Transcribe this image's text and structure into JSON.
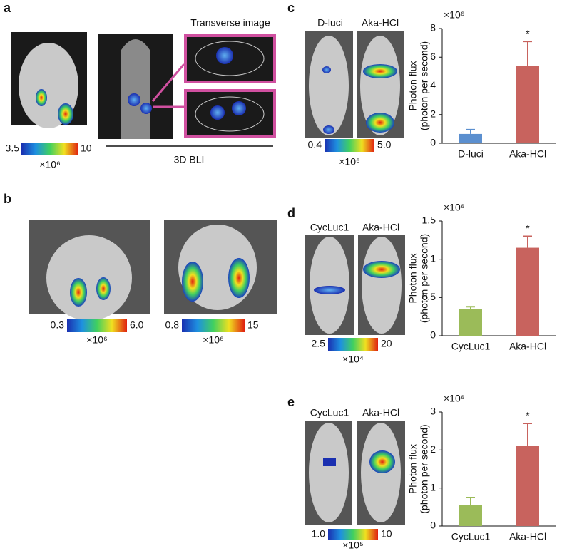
{
  "figure": {
    "a": {
      "letter": "a",
      "colorbar": [
        "3.5",
        "10"
      ],
      "scale": "×10⁶",
      "transverse": "Transverse image",
      "caption": "3D BLI"
    },
    "b": {
      "letter": "b",
      "colorbars": [
        {
          "range": [
            "0.3",
            "6.0"
          ],
          "scale": "×10⁶"
        },
        {
          "range": [
            "0.8",
            "15"
          ],
          "scale": "×10⁶"
        }
      ]
    },
    "c": {
      "letter": "c",
      "image_labels": [
        "D-luci",
        "Aka-HCl"
      ],
      "colorbar": [
        "0.4",
        "5.0"
      ],
      "scale": "×10⁶"
    },
    "d": {
      "letter": "d",
      "image_labels": [
        "CycLuc1",
        "Aka-HCl"
      ],
      "colorbar": [
        "2.5",
        "20"
      ],
      "scale": "×10⁴"
    },
    "e": {
      "letter": "e",
      "image_labels": [
        "CycLuc1",
        "Aka-HCl"
      ],
      "colorbar": [
        "1.0",
        "10"
      ],
      "scale": "×10⁵"
    }
  },
  "chart_data": [
    {
      "type": "bar",
      "multiplier": "×10⁶",
      "ylabel": [
        "Photon flux",
        "(photon per second)"
      ],
      "annotation": "*",
      "categories": [
        "D-luci",
        "Aka-HCl"
      ],
      "values": [
        0.65,
        5.4
      ],
      "errors": [
        0.3,
        1.7
      ],
      "colors": [
        "#5b8fcf",
        "#c8635e"
      ],
      "ylim": [
        0,
        8
      ],
      "yticks": [
        0,
        2,
        4,
        6,
        8
      ]
    },
    {
      "type": "bar",
      "multiplier": "×10⁶",
      "ylabel": [
        "Photon flux",
        "(photon per second)"
      ],
      "annotation": "*",
      "categories": [
        "CycLuc1",
        "Aka-HCl"
      ],
      "values": [
        0.35,
        1.15
      ],
      "errors": [
        0.03,
        0.15
      ],
      "colors": [
        "#9bbb59",
        "#c8635e"
      ],
      "ylim": [
        0,
        1.5
      ],
      "yticks": [
        0,
        0.5,
        1,
        1.5
      ]
    },
    {
      "type": "bar",
      "multiplier": "×10⁶",
      "ylabel": [
        "Photon flux",
        "(photon per second)"
      ],
      "annotation": "*",
      "categories": [
        "CycLuc1",
        "Aka-HCl"
      ],
      "values": [
        0.55,
        2.1
      ],
      "errors": [
        0.2,
        0.6
      ],
      "colors": [
        "#9bbb59",
        "#c8635e"
      ],
      "ylim": [
        0,
        3
      ],
      "yticks": [
        0,
        1,
        2,
        3
      ]
    }
  ]
}
